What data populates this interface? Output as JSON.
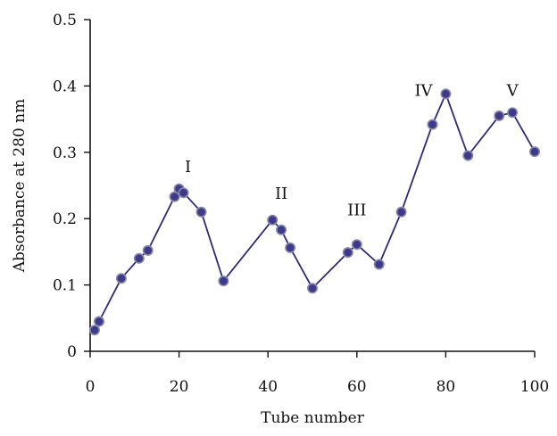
{
  "chart_data": {
    "type": "line",
    "title": "",
    "xlabel": "Tube number",
    "ylabel": "Absorbance  at 280 nm",
    "xlim": [
      0,
      100
    ],
    "ylim": [
      0,
      0.5
    ],
    "xticks": [
      0,
      20,
      40,
      60,
      80,
      100
    ],
    "yticks": [
      0,
      0.1,
      0.2,
      0.3,
      0.4,
      0.5
    ],
    "xtick_labels": [
      "0",
      "20",
      "40",
      "60",
      "80",
      "100"
    ],
    "ytick_labels": [
      "0",
      "0.1",
      "0.2",
      "0.3",
      "0.4",
      "0.5"
    ],
    "grid": false,
    "series": [
      {
        "x": [
          1,
          2,
          7,
          11,
          13,
          19,
          20,
          21,
          25,
          30,
          41,
          43,
          45,
          50,
          58,
          60,
          65,
          70,
          77,
          80,
          85,
          92,
          95,
          100
        ],
        "y": [
          0.032,
          0.045,
          0.11,
          0.14,
          0.152,
          0.233,
          0.245,
          0.239,
          0.21,
          0.106,
          0.198,
          0.183,
          0.156,
          0.095,
          0.149,
          0.161,
          0.131,
          0.21,
          0.342,
          0.388,
          0.295,
          0.355,
          0.36,
          0.301
        ]
      }
    ],
    "annotations": [
      {
        "text": "I",
        "x": 22,
        "y": 0.27
      },
      {
        "text": "II",
        "x": 43,
        "y": 0.23
      },
      {
        "text": "III",
        "x": 60,
        "y": 0.205
      },
      {
        "text": "IV",
        "x": 75,
        "y": 0.385
      },
      {
        "text": "V",
        "x": 95,
        "y": 0.385
      }
    ],
    "colors": {
      "line": "#2e2a78",
      "marker_fill": "#3d3a8c",
      "marker_stroke": "#8a8aa8",
      "axis": "#111111"
    }
  }
}
